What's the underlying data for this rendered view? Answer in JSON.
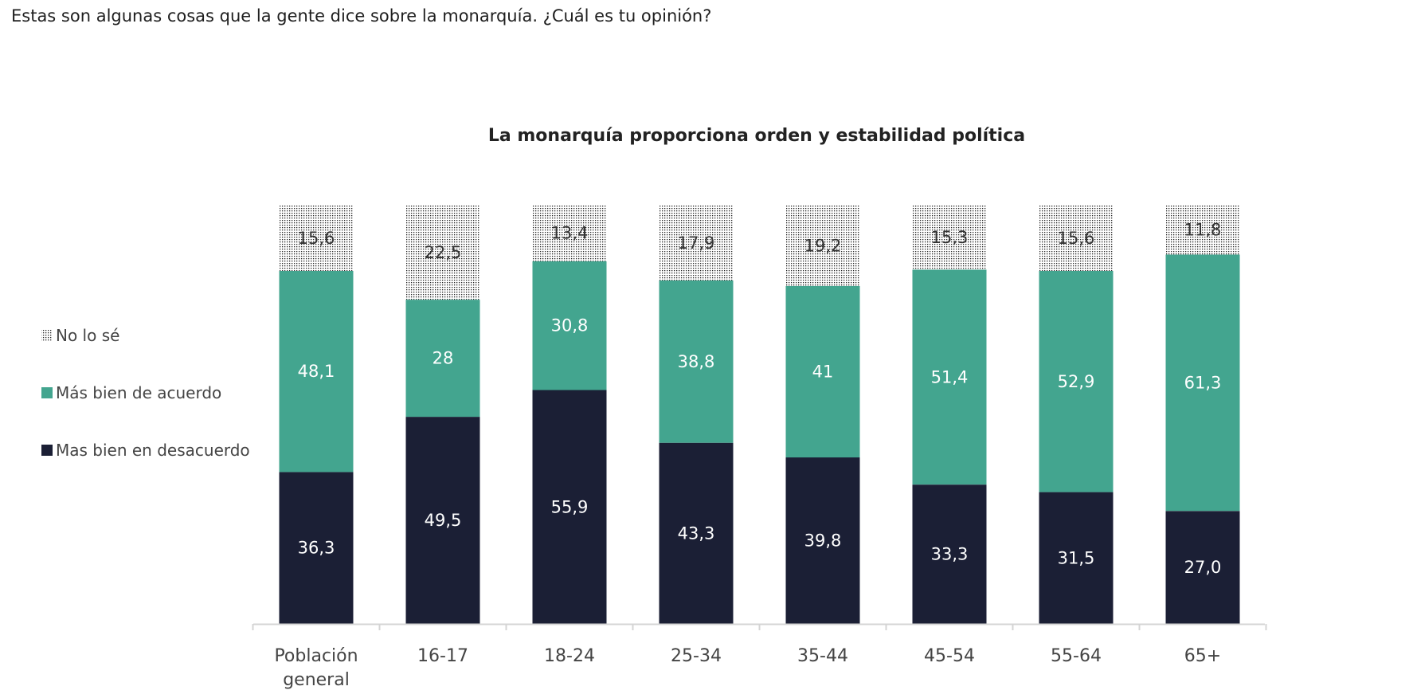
{
  "page": {
    "question": "Estas son algunas cosas que la gente dice sobre la monarquía. ¿Cuál es tu opinión?"
  },
  "chart_data": {
    "type": "bar",
    "stacked": true,
    "title": "La monarquía proporciona orden y estabilidad política",
    "categories": [
      "Población general",
      "16-17",
      "18-24",
      "25-34",
      "35-44",
      "45-54",
      "55-64",
      "65+"
    ],
    "series": [
      {
        "name": "Mas bien en desacuerdo",
        "color": "#1b1f35",
        "label_color": "#ffffff",
        "pattern": "solid",
        "values": [
          36.3,
          49.5,
          55.9,
          43.3,
          39.8,
          33.3,
          31.5,
          27.0
        ],
        "labels": [
          "36,3",
          "49,5",
          "55,9",
          "43,3",
          "39,8",
          "33,3",
          "31,5",
          "27,0"
        ]
      },
      {
        "name": "Más bien de acuerdo",
        "color": "#43a58f",
        "label_color": "#ffffff",
        "pattern": "solid",
        "values": [
          48.1,
          28,
          30.8,
          38.8,
          41,
          51.4,
          52.9,
          61.3
        ],
        "labels": [
          "48,1",
          "28",
          "30,8",
          "38,8",
          "41",
          "51,4",
          "52,9",
          "61,3"
        ]
      },
      {
        "name": "No lo sé",
        "color": "#222222",
        "label_color": "#333333",
        "pattern": "dotted",
        "values": [
          15.6,
          22.5,
          13.4,
          17.9,
          19.2,
          15.3,
          15.6,
          11.8
        ],
        "labels": [
          "15,6",
          "22,5",
          "13,4",
          "17,9",
          "19,2",
          "15,3",
          "15,6",
          "11,8"
        ]
      }
    ],
    "legend": {
      "position": "left",
      "order": [
        "No lo sé",
        "Más bien de acuerdo",
        "Mas bien en desacuerdo"
      ]
    },
    "ylim": [
      0,
      100
    ],
    "grid": false,
    "xlabel": "",
    "ylabel": ""
  }
}
